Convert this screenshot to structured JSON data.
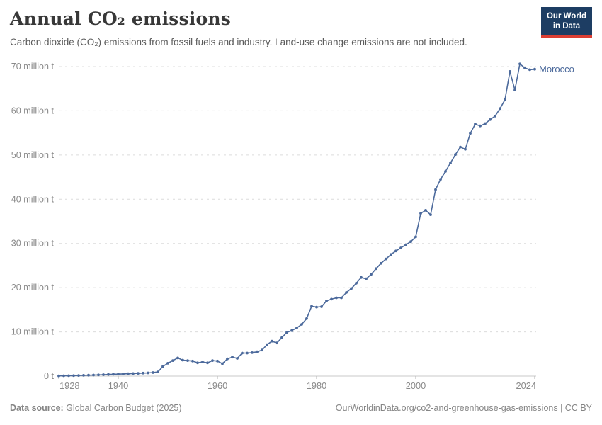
{
  "header": {
    "title": "Annual CO₂ emissions",
    "subtitle": "Carbon dioxide (CO₂) emissions from fossil fuels and industry. Land-use change emissions are not included."
  },
  "logo": {
    "line1": "Our World",
    "line2": "in Data"
  },
  "colors": {
    "series": "#4C6A9C",
    "logo_navy": "#1d3d63",
    "logo_red": "#dc3e33",
    "grid": "#dcdcdc",
    "axis_line": "#c9c9c9",
    "tick_mark": "#b3b3b3",
    "axis_text": "#8a8a8a",
    "title_text": "#383838",
    "footer_text": "#858585"
  },
  "chart_data": {
    "type": "line",
    "title": "Annual CO₂ emissions",
    "entity": "Morocco",
    "end_label": "Morocco",
    "xlabel": "",
    "ylabel": "",
    "xlim": [
      1928,
      2024
    ],
    "ylim": [
      0,
      70
    ],
    "grid": "horizontal-dashed",
    "legend_position": "end-of-line",
    "x_ticks": [
      1928,
      1940,
      1960,
      1980,
      2000,
      2024
    ],
    "y_ticks": [
      {
        "value": 0,
        "label": "0 t"
      },
      {
        "value": 10,
        "label": "10 million t"
      },
      {
        "value": 20,
        "label": "20 million t"
      },
      {
        "value": 30,
        "label": "30 million t"
      },
      {
        "value": 40,
        "label": "40 million t"
      },
      {
        "value": 50,
        "label": "50 million t"
      },
      {
        "value": 60,
        "label": "60 million t"
      },
      {
        "value": 70,
        "label": "70 million t"
      }
    ],
    "series": [
      {
        "name": "Morocco",
        "color": "#4C6A9C",
        "unit": "million t",
        "x": [
          1928,
          1929,
          1930,
          1931,
          1932,
          1933,
          1934,
          1935,
          1936,
          1937,
          1938,
          1939,
          1940,
          1941,
          1942,
          1943,
          1944,
          1945,
          1946,
          1947,
          1948,
          1949,
          1950,
          1951,
          1952,
          1953,
          1954,
          1955,
          1956,
          1957,
          1958,
          1959,
          1960,
          1961,
          1962,
          1963,
          1964,
          1965,
          1966,
          1967,
          1968,
          1969,
          1970,
          1971,
          1972,
          1973,
          1974,
          1975,
          1976,
          1977,
          1978,
          1979,
          1980,
          1981,
          1982,
          1983,
          1984,
          1985,
          1986,
          1987,
          1988,
          1989,
          1990,
          1991,
          1992,
          1993,
          1994,
          1995,
          1996,
          1997,
          1998,
          1999,
          2000,
          2001,
          2002,
          2003,
          2004,
          2005,
          2006,
          2007,
          2008,
          2009,
          2010,
          2011,
          2012,
          2013,
          2014,
          2015,
          2016,
          2017,
          2018,
          2019,
          2020,
          2021,
          2022,
          2023,
          2024
        ],
        "values": [
          0.05,
          0.08,
          0.1,
          0.12,
          0.15,
          0.18,
          0.21,
          0.24,
          0.28,
          0.32,
          0.37,
          0.41,
          0.45,
          0.5,
          0.54,
          0.58,
          0.63,
          0.67,
          0.72,
          0.8,
          0.95,
          2.2,
          2.9,
          3.5,
          4.1,
          3.6,
          3.5,
          3.4,
          3.0,
          3.2,
          3.0,
          3.5,
          3.4,
          2.8,
          3.9,
          4.3,
          4.0,
          5.2,
          5.2,
          5.3,
          5.5,
          5.9,
          7.1,
          7.9,
          7.5,
          8.7,
          9.9,
          10.3,
          10.9,
          11.7,
          13.0,
          15.8,
          15.6,
          15.7,
          17.0,
          17.4,
          17.7,
          17.7,
          18.9,
          19.8,
          21.0,
          22.3,
          22.0,
          23.0,
          24.3,
          25.5,
          26.5,
          27.5,
          28.3,
          29.0,
          29.7,
          30.4,
          31.5,
          36.8,
          37.5,
          36.5,
          42.2,
          44.5,
          46.3,
          48.2,
          50.1,
          51.8,
          51.3,
          54.9,
          57.0,
          56.6,
          57.1,
          58.0,
          58.8,
          60.5,
          62.5,
          68.9,
          64.7,
          70.6,
          69.7,
          69.3,
          69.4
        ]
      }
    ]
  },
  "footer": {
    "datasource_label": "Data source:",
    "datasource_value": " Global Carbon Budget (2025)",
    "license": "OurWorldinData.org/co2-and-greenhouse-gas-emissions | CC BY"
  }
}
